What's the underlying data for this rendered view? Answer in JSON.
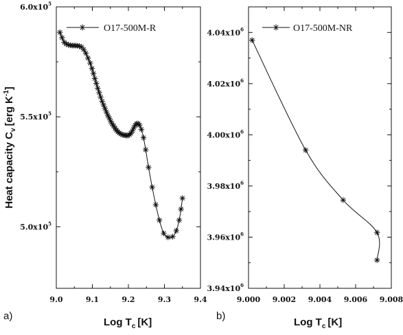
{
  "chart_data": [
    {
      "panel_label": "a)",
      "type": "line",
      "xlabel": "Log T",
      "xlabel_sub": "c",
      "xlabel_unit": "[K]",
      "ylabel": "Heat capacity C",
      "ylabel_sub": "v",
      "ylabel_unit": "[erg K",
      "ylabel_unit_sup": "-1",
      "ylabel_unit_end": "]",
      "xlim": [
        9.0,
        9.4
      ],
      "ylim": [
        472000,
        600000
      ],
      "xticks": [
        {
          "value": 9.0,
          "label": "9.0"
        },
        {
          "value": 9.1,
          "label": "9.1"
        },
        {
          "value": 9.2,
          "label": "9.2"
        },
        {
          "value": 9.3,
          "label": "9.3"
        },
        {
          "value": 9.4,
          "label": "9.4"
        }
      ],
      "yticks": [
        {
          "value": 500000,
          "mant": "5.0x10",
          "exp": "5"
        },
        {
          "value": 550000,
          "mant": "5.5x10",
          "exp": "5"
        },
        {
          "value": 600000,
          "mant": "6.0x10",
          "exp": "5"
        }
      ],
      "legend": {
        "position": "top-right",
        "label": "O17-500M-R"
      },
      "series": [
        {
          "name": "O17-500M-R",
          "marker": "asterisk",
          "x": [
            9.01,
            9.016,
            9.022,
            9.028,
            9.034,
            9.04,
            9.046,
            9.052,
            9.058,
            9.064,
            9.07,
            9.076,
            9.082,
            9.088,
            9.094,
            9.099,
            9.103,
            9.107,
            9.111,
            9.115,
            9.119,
            9.123,
            9.127,
            9.131,
            9.135,
            9.139,
            9.143,
            9.147,
            9.151,
            9.155,
            9.159,
            9.163,
            9.167,
            9.171,
            9.175,
            9.179,
            9.183,
            9.187,
            9.191,
            9.195,
            9.199,
            9.203,
            9.207,
            9.211,
            9.215,
            9.219,
            9.223,
            9.227,
            9.231,
            9.236,
            9.242,
            9.248,
            9.256,
            9.266,
            9.276,
            9.286,
            9.298,
            9.31,
            9.323,
            9.333,
            9.341,
            9.346,
            9.35
          ],
          "y": [
            588400,
            586000,
            583900,
            583100,
            582700,
            582500,
            582400,
            582400,
            582300,
            582200,
            581700,
            580600,
            578900,
            576700,
            574400,
            572000,
            569700,
            567400,
            565200,
            563000,
            561000,
            559000,
            557100,
            555400,
            553800,
            552200,
            550700,
            549400,
            548000,
            546800,
            545800,
            544800,
            543900,
            543200,
            542600,
            542200,
            541900,
            541700,
            541600,
            541500,
            541500,
            541900,
            542500,
            543600,
            545000,
            546200,
            546900,
            546900,
            546200,
            544300,
            540500,
            535000,
            527000,
            518000,
            510000,
            503000,
            497000,
            495200,
            495500,
            498200,
            503000,
            508000,
            513000
          ]
        }
      ]
    },
    {
      "panel_label": "b)",
      "type": "line",
      "xlabel": "Log T",
      "xlabel_sub": "c",
      "xlabel_unit": "[K]",
      "xlim": [
        9.0,
        9.008
      ],
      "ylim": [
        3940000,
        4050000
      ],
      "xticks": [
        {
          "value": 9.0,
          "label": "9.000"
        },
        {
          "value": 9.002,
          "label": "9.002"
        },
        {
          "value": 9.004,
          "label": "9.004"
        },
        {
          "value": 9.006,
          "label": "9.006"
        },
        {
          "value": 9.008,
          "label": "9.008"
        }
      ],
      "yticks": [
        {
          "value": 3940000,
          "mant": "3.94x10",
          "exp": "6"
        },
        {
          "value": 3960000,
          "mant": "3.96x10",
          "exp": "6"
        },
        {
          "value": 3980000,
          "mant": "3.98x10",
          "exp": "6"
        },
        {
          "value": 4000000,
          "mant": "4.00x10",
          "exp": "6"
        },
        {
          "value": 4020000,
          "mant": "4.02x10",
          "exp": "6"
        },
        {
          "value": 4040000,
          "mant": "4.04x10",
          "exp": "6"
        }
      ],
      "legend": {
        "position": "top-right",
        "label": "O17-500M-NR"
      },
      "series": [
        {
          "name": "O17-500M-NR",
          "marker": "asterisk",
          "x": [
            9.0002,
            9.0032,
            9.0053,
            9.0072,
            9.0072
          ],
          "y": [
            4037000,
            3994000,
            3974500,
            3961800,
            3951000
          ]
        }
      ]
    }
  ]
}
